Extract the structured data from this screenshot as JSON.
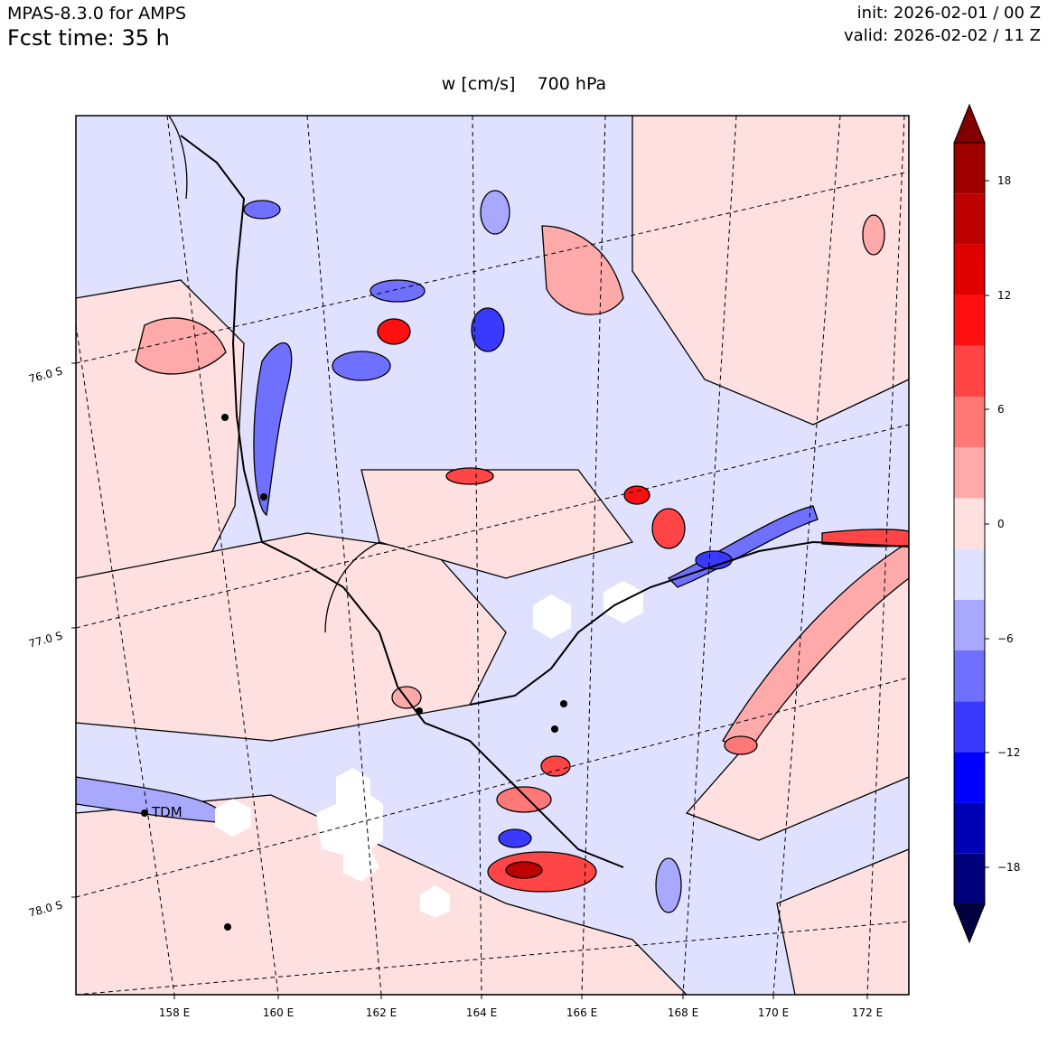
{
  "header": {
    "model": "MPAS-8.3.0 for AMPS",
    "fcst_time": "Fcst time:   35 h",
    "init": "init: 2026-02-01 / 00 Z",
    "valid": "valid: 2026-02-02 / 11 Z",
    "title": "w [cm/s]    700 hPa"
  },
  "map": {
    "lon_labels": [
      "158 E",
      "160 E",
      "162 E",
      "164 E",
      "166 E",
      "168 E",
      "170 E",
      "172 E"
    ],
    "lat_labels": [
      "76.0 S",
      "77.0 S",
      "78.0 S"
    ],
    "station_label": "TDM"
  },
  "colorbar": {
    "tick_labels": [
      "18",
      "12",
      "6",
      "0",
      "−6",
      "−12",
      "−18"
    ],
    "colors": [
      "#000040",
      "#00007a",
      "#0000b5",
      "#0000ff",
      "#3a3aff",
      "#7070ff",
      "#a8a8ff",
      "#e0e0ff",
      "#ffe0e0",
      "#ffaaaa",
      "#ff7878",
      "#ff4545",
      "#ff1010",
      "#e00000",
      "#bd0000",
      "#9e0000",
      "#800000"
    ]
  }
}
